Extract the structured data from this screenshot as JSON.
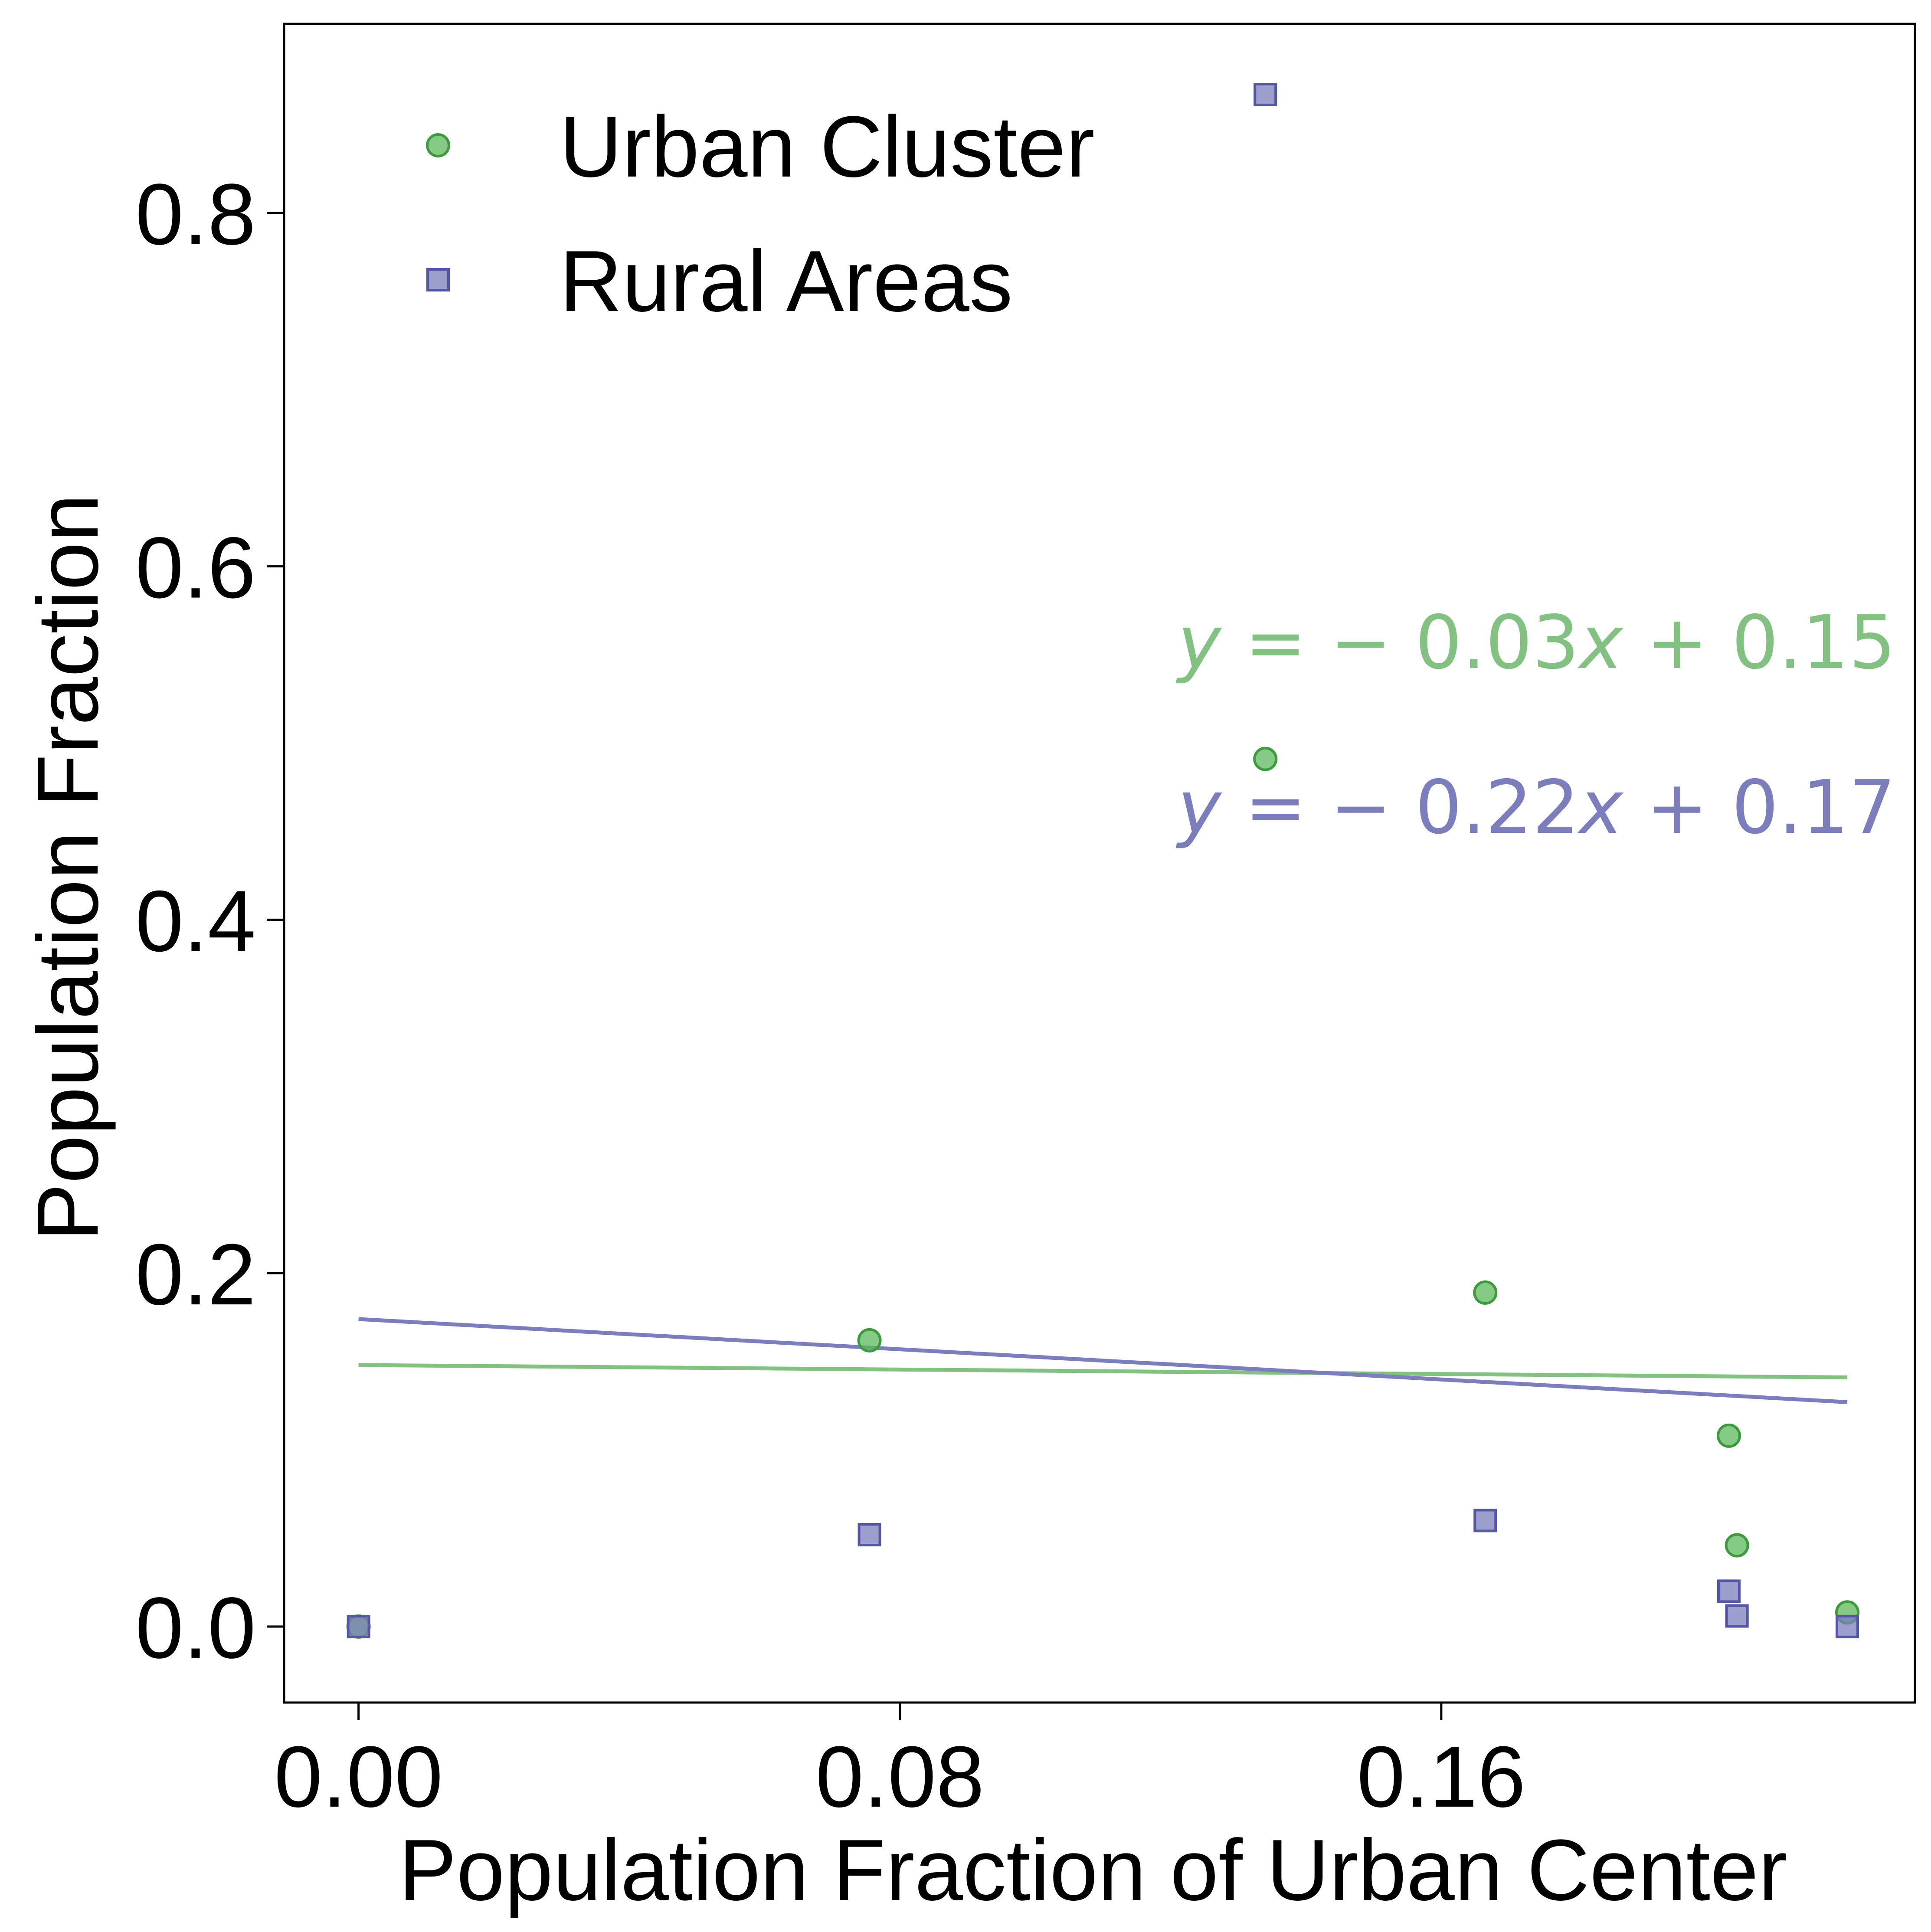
{
  "chart_data": {
    "type": "scatter",
    "xlabel": "Population Fraction of Urban Center",
    "ylabel": "Population Fraction",
    "xlim": [
      -0.011,
      0.23
    ],
    "ylim": [
      -0.043,
      0.907
    ],
    "xticks": [
      0.0,
      0.08,
      0.16
    ],
    "xtick_labels": [
      "0.00",
      "0.08",
      "0.16"
    ],
    "yticks": [
      0.0,
      0.2,
      0.4,
      0.6,
      0.8
    ],
    "ytick_labels": [
      "0.0",
      "0.2",
      "0.4",
      "0.6",
      "0.8"
    ],
    "grid": false,
    "legend_position": "upper-left",
    "series": [
      {
        "name": "Urban Cluster",
        "marker": "circle",
        "color": "#5cb85c",
        "points": [
          {
            "x": 0.0,
            "y": 0.0
          },
          {
            "x": 0.0755,
            "y": 0.162
          },
          {
            "x": 0.134,
            "y": 0.491
          },
          {
            "x": 0.1665,
            "y": 0.189
          },
          {
            "x": 0.2025,
            "y": 0.108
          },
          {
            "x": 0.2037,
            "y": 0.046
          },
          {
            "x": 0.22,
            "y": 0.008
          }
        ],
        "fit": {
          "slope": -0.03,
          "intercept": 0.15,
          "x_range": [
            0.0,
            0.22
          ],
          "y_start": 0.148,
          "y_end": 0.141,
          "color": "#82c182"
        },
        "equation": {
          "parts": [
            {
              "t": "y",
              "italic": true
            },
            {
              "t": " = − 0.03",
              "italic": false
            },
            {
              "t": "x",
              "italic": true
            },
            {
              "t": " + 0.15",
              "italic": false
            }
          ]
        }
      },
      {
        "name": "Rural Areas",
        "marker": "square",
        "color": "#7b7dbd",
        "points": [
          {
            "x": 0.0,
            "y": 0.0
          },
          {
            "x": 0.0755,
            "y": 0.052
          },
          {
            "x": 0.134,
            "y": 0.867
          },
          {
            "x": 0.1665,
            "y": 0.06
          },
          {
            "x": 0.2025,
            "y": 0.02
          },
          {
            "x": 0.2037,
            "y": 0.006
          },
          {
            "x": 0.22,
            "y": 0.0
          }
        ],
        "fit": {
          "slope": -0.22,
          "intercept": 0.17,
          "x_range": [
            0.0,
            0.22
          ],
          "y_start": 0.174,
          "y_end": 0.127,
          "color": "#7b7dbd"
        },
        "equation": {
          "parts": [
            {
              "t": "y",
              "italic": true
            },
            {
              "t": " = − 0.22",
              "italic": false
            },
            {
              "t": "x",
              "italic": true
            },
            {
              "t": " + 0.17",
              "italic": false
            }
          ]
        }
      }
    ]
  }
}
